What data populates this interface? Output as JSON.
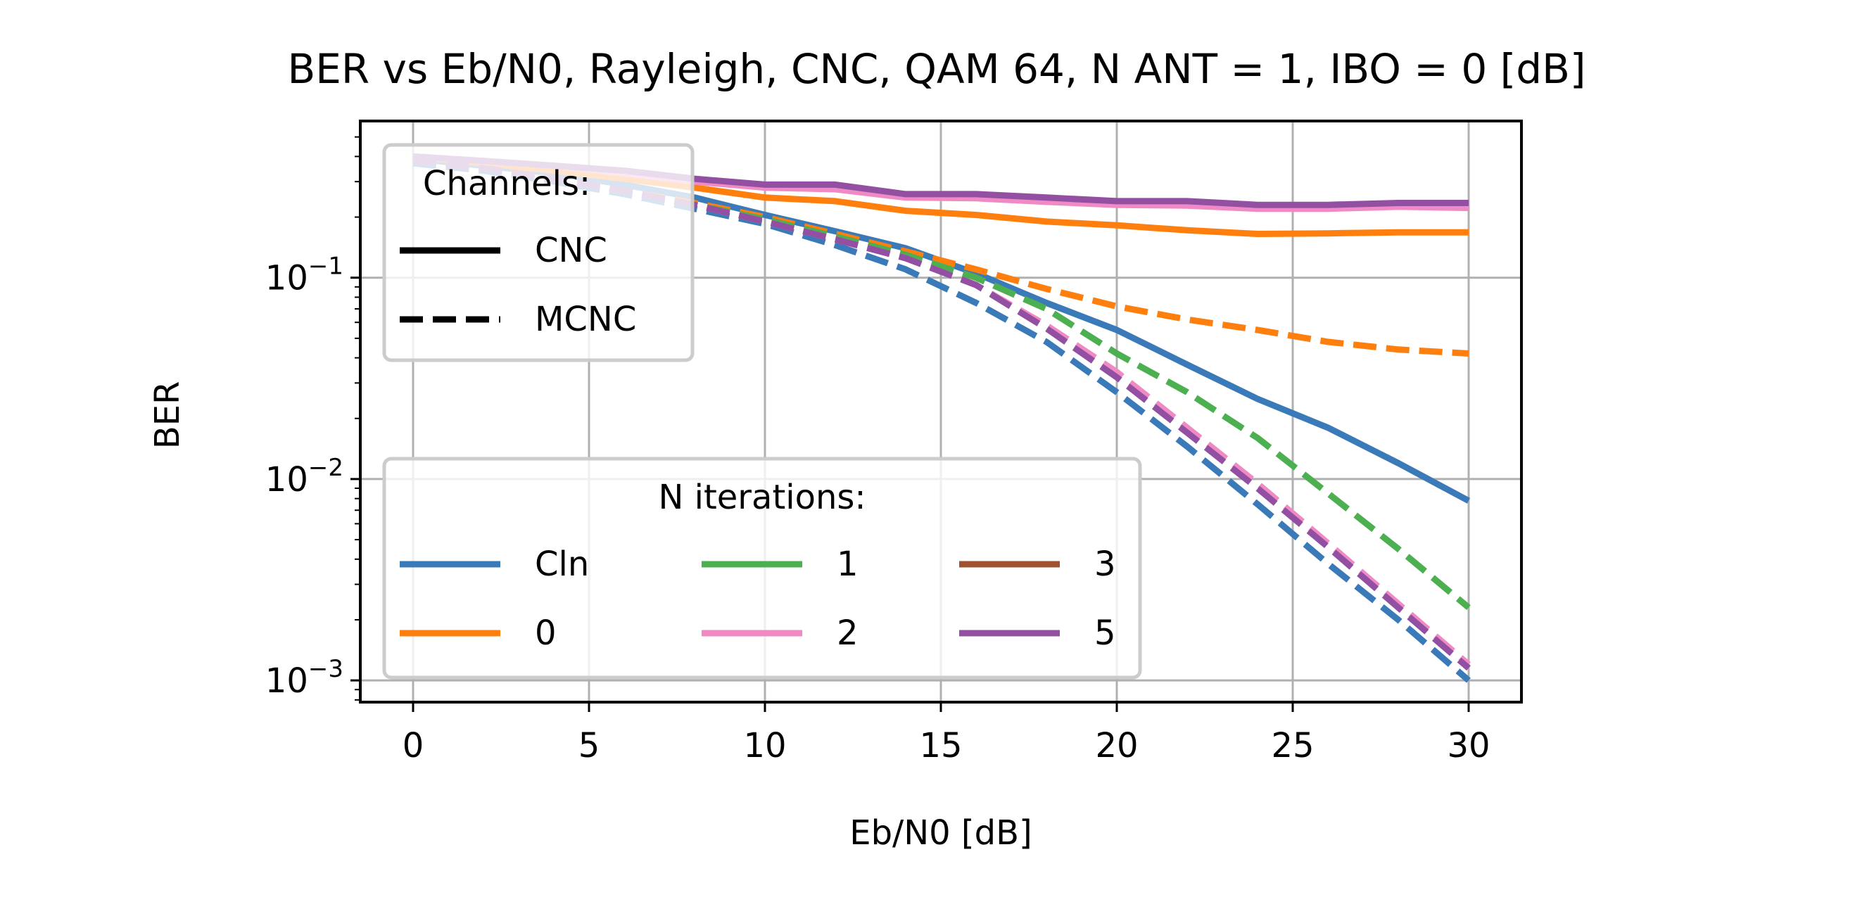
{
  "chart_data": {
    "type": "line",
    "title": "BER vs Eb/N0, Rayleigh, CNC, QAM 64, N ANT = 1, IBO = 0 [dB]",
    "xlabel": "Eb/N0 [dB]",
    "ylabel": "BER",
    "xlim": [
      -1.5,
      31.5
    ],
    "ylim": [
      0.00078,
      0.6
    ],
    "yscale": "log",
    "grid": true,
    "x_ticks": [
      0,
      5,
      10,
      15,
      20,
      25,
      30
    ],
    "x_tick_labels": [
      "0",
      "5",
      "10",
      "15",
      "20",
      "25",
      "30"
    ],
    "y_ticks": [
      0.001,
      0.01,
      0.1
    ],
    "y_tick_labels": [
      {
        "base": "10",
        "exp": "−3"
      },
      {
        "base": "10",
        "exp": "−2"
      },
      {
        "base": "10",
        "exp": "−1"
      }
    ],
    "x": [
      0,
      2,
      4,
      6,
      8,
      10,
      12,
      14,
      16,
      18,
      20,
      22,
      24,
      26,
      28,
      30
    ],
    "legends": {
      "channels": {
        "title": "Channels:",
        "placement": "upper-left",
        "entries": [
          {
            "label": "CNC",
            "style": "solid"
          },
          {
            "label": "MCNC",
            "style": "dashed"
          }
        ]
      },
      "iterations": {
        "title": "N iterations:",
        "placement": "lower-left",
        "columns": 3,
        "entries": [
          {
            "label": "Cln",
            "color": "#3a7ab8"
          },
          {
            "label": "0",
            "color": "#ff7f0e"
          },
          {
            "label": "1",
            "color": "#4caf50"
          },
          {
            "label": "2",
            "color": "#f08ac4"
          },
          {
            "label": "3",
            "color": "#a0522d"
          },
          {
            "label": "5",
            "color": "#9350a2"
          }
        ]
      }
    },
    "series": [
      {
        "name": "Cln",
        "channel": "CNC",
        "color": "#3a7ab8",
        "values": [
          0.39,
          0.36,
          0.33,
          0.29,
          0.25,
          0.205,
          0.17,
          0.14,
          0.105,
          0.075,
          0.055,
          0.037,
          0.025,
          0.018,
          0.012,
          0.0078
        ]
      },
      {
        "name": "0",
        "channel": "CNC",
        "color": "#ff7f0e",
        "values": [
          0.4,
          0.37,
          0.34,
          0.31,
          0.28,
          0.25,
          0.24,
          0.215,
          0.205,
          0.19,
          0.182,
          0.172,
          0.165,
          0.166,
          0.168,
          0.168
        ]
      },
      {
        "name": "2",
        "channel": "CNC",
        "color": "#f08ac4",
        "values": [
          0.4,
          0.38,
          0.36,
          0.33,
          0.3,
          0.28,
          0.275,
          0.25,
          0.248,
          0.238,
          0.23,
          0.228,
          0.22,
          0.22,
          0.225,
          0.222
        ]
      },
      {
        "name": "5",
        "channel": "CNC",
        "color": "#9350a2",
        "values": [
          0.4,
          0.38,
          0.36,
          0.34,
          0.31,
          0.29,
          0.29,
          0.26,
          0.26,
          0.25,
          0.24,
          0.24,
          0.23,
          0.23,
          0.235,
          0.235
        ]
      },
      {
        "name": "0",
        "channel": "MCNC",
        "color": "#ff7f0e",
        "values": [
          0.38,
          0.35,
          0.31,
          0.27,
          0.235,
          0.2,
          0.165,
          0.135,
          0.11,
          0.088,
          0.072,
          0.062,
          0.055,
          0.048,
          0.044,
          0.042
        ]
      },
      {
        "name": "1",
        "channel": "MCNC",
        "color": "#4caf50",
        "values": [
          0.38,
          0.35,
          0.31,
          0.27,
          0.23,
          0.195,
          0.16,
          0.13,
          0.1,
          0.07,
          0.042,
          0.027,
          0.016,
          0.0085,
          0.0045,
          0.0023
        ]
      },
      {
        "name": "Cln",
        "channel": "MCNC",
        "color": "#3a7ab8",
        "values": [
          0.37,
          0.34,
          0.3,
          0.26,
          0.22,
          0.185,
          0.145,
          0.11,
          0.075,
          0.048,
          0.027,
          0.0145,
          0.0075,
          0.0038,
          0.002,
          0.001
        ]
      },
      {
        "name": "2",
        "channel": "MCNC",
        "color": "#f08ac4",
        "values": [
          0.38,
          0.35,
          0.31,
          0.27,
          0.23,
          0.19,
          0.155,
          0.125,
          0.092,
          0.058,
          0.034,
          0.018,
          0.0095,
          0.0048,
          0.0024,
          0.0012
        ]
      },
      {
        "name": "5",
        "channel": "MCNC",
        "color": "#9350a2",
        "values": [
          0.38,
          0.35,
          0.31,
          0.27,
          0.23,
          0.19,
          0.155,
          0.125,
          0.092,
          0.056,
          0.032,
          0.017,
          0.009,
          0.0046,
          0.0023,
          0.00115
        ]
      }
    ]
  }
}
